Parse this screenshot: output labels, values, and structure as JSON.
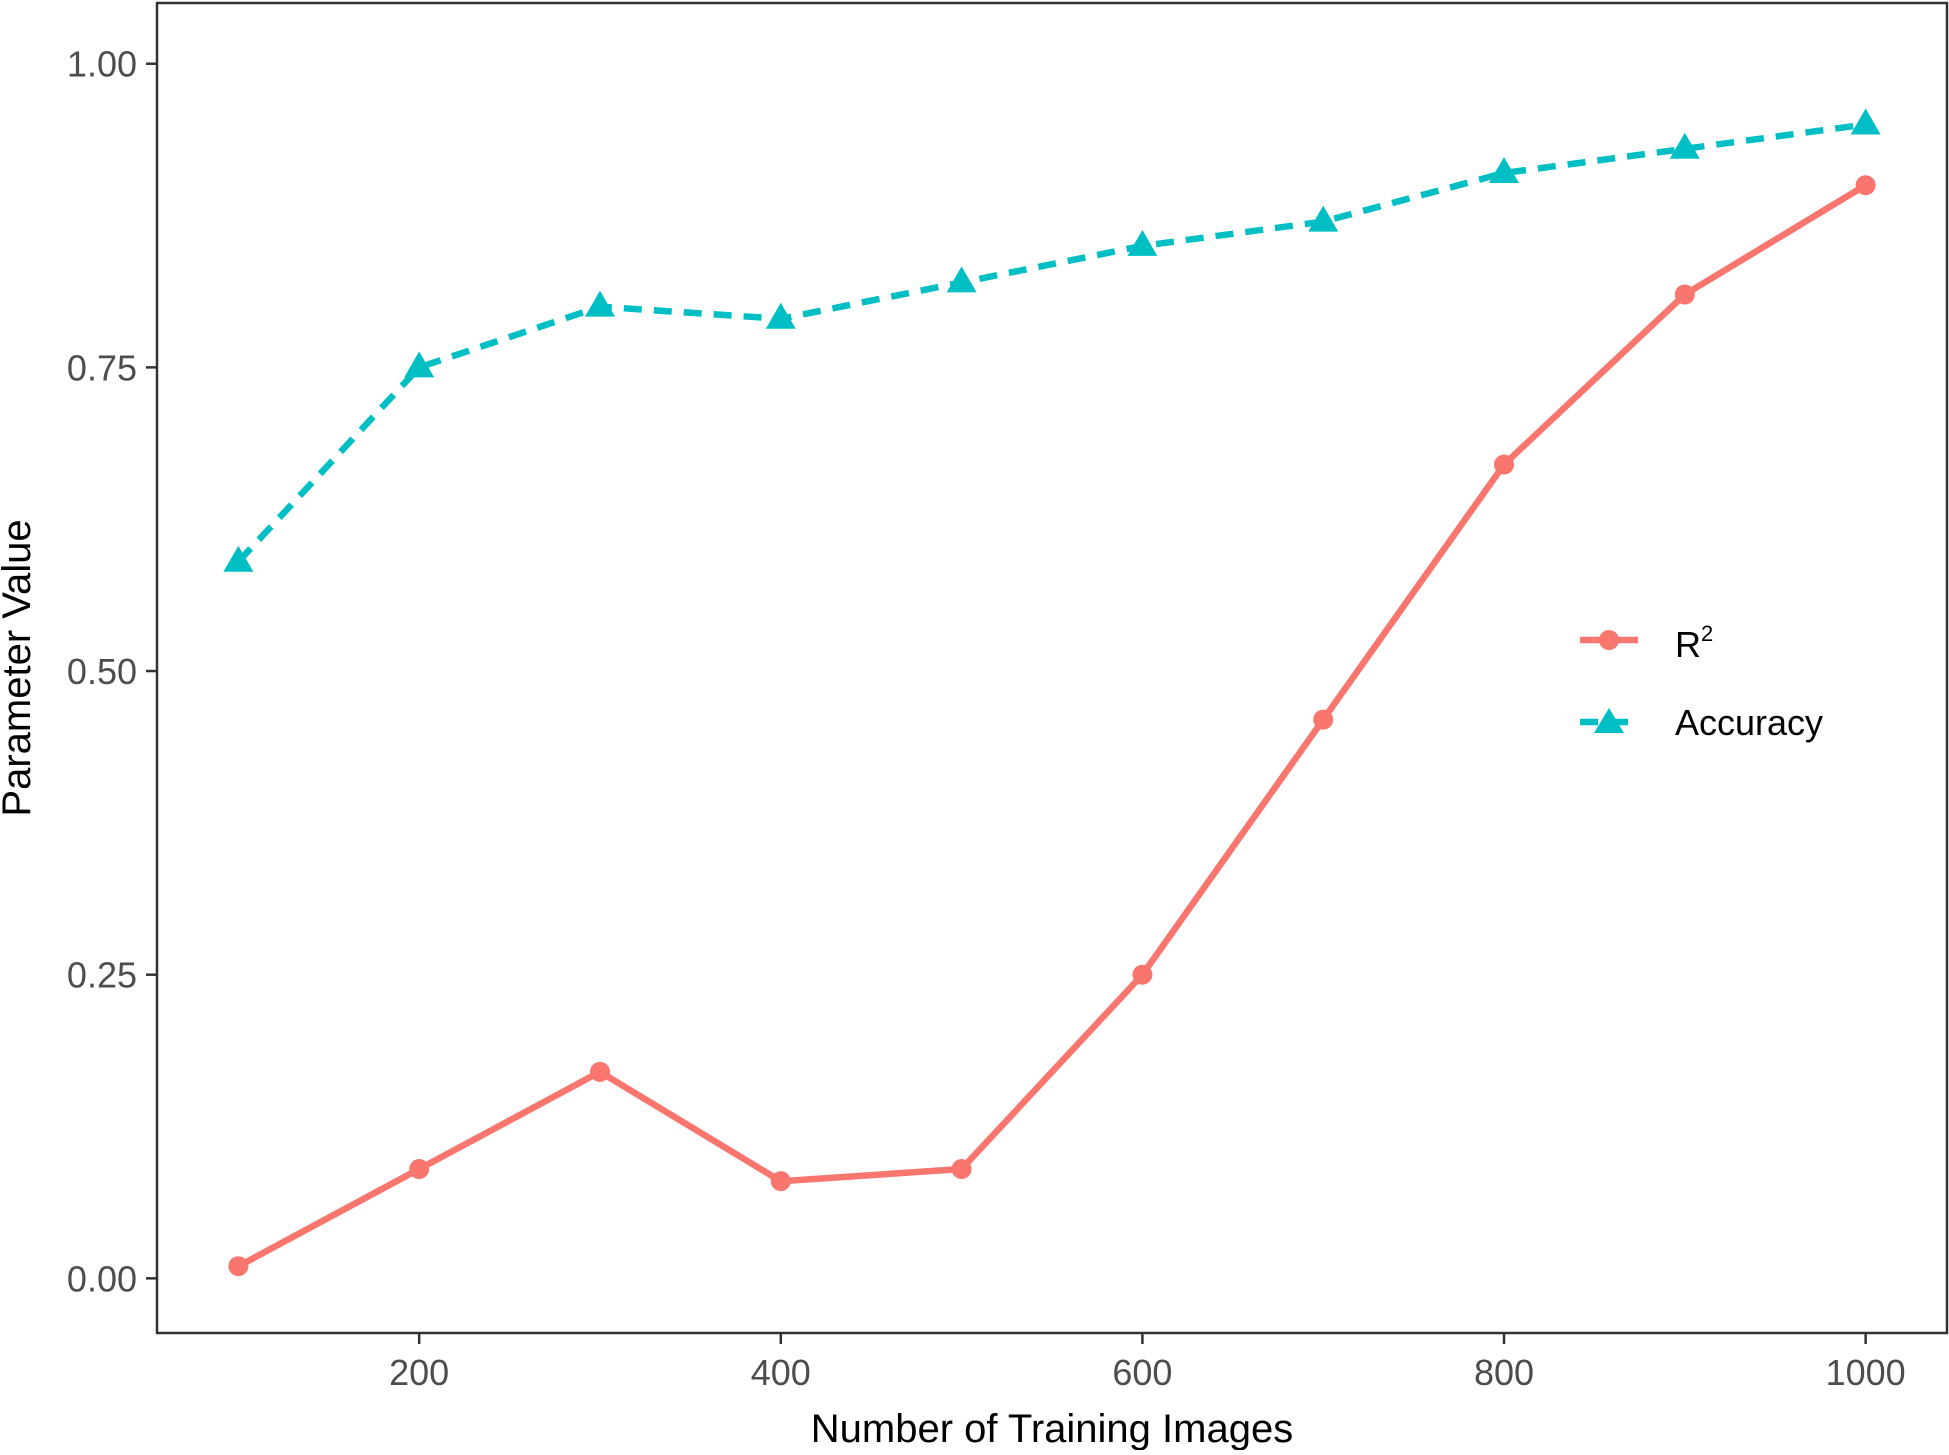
{
  "chart_data": {
    "type": "line",
    "title": "",
    "xlabel": "Number of Training Images",
    "ylabel": "Parameter Value",
    "x": [
      100,
      200,
      300,
      400,
      500,
      600,
      700,
      800,
      900,
      1000
    ],
    "xlim": [
      55,
      1045
    ],
    "ylim": [
      -0.045,
      1.05
    ],
    "x_ticks": [
      200,
      400,
      600,
      800,
      1000
    ],
    "x_tick_labels": [
      "200",
      "400",
      "600",
      "800",
      "1000"
    ],
    "y_ticks": [
      0,
      0.25,
      0.5,
      0.75,
      1.0
    ],
    "y_tick_labels": [
      "0.00",
      "0.25",
      "0.50",
      "0.75",
      "1.00"
    ],
    "grid": false,
    "legend": {
      "placement": "right",
      "entries": [
        {
          "label_main": "R",
          "label_sup": "2"
        },
        {
          "label_main": "Accuracy",
          "label_sup": ""
        }
      ]
    },
    "series": [
      {
        "name": "R2",
        "color": "#F8766D",
        "line_style": "solid",
        "marker": "circle",
        "values": [
          0.01,
          0.09,
          0.17,
          0.08,
          0.09,
          0.25,
          0.46,
          0.67,
          0.81,
          0.9
        ]
      },
      {
        "name": "Accuracy",
        "color": "#00BFC4",
        "line_style": "dashed",
        "marker": "triangle",
        "values": [
          0.59,
          0.75,
          0.8,
          0.79,
          0.82,
          0.85,
          0.87,
          0.91,
          0.93,
          0.95
        ]
      }
    ]
  }
}
